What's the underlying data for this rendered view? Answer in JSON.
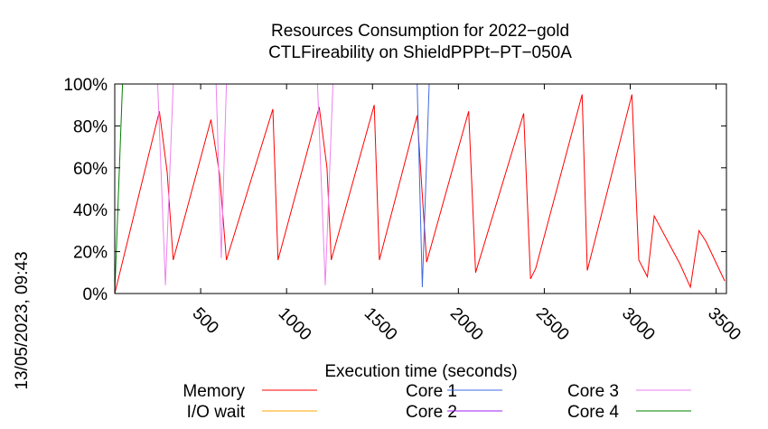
{
  "chart_data": {
    "type": "line",
    "title": "Resources Consumption for 2022−gold",
    "subtitle": "CTLFireability on ShieldPPPt−PT−050A",
    "xlabel": "Execution time (seconds)",
    "ylabel": "",
    "side_label": "13/05/2023, 09:43",
    "xlim": [
      0,
      3560
    ],
    "ylim": [
      0,
      100
    ],
    "x_ticks": [
      500,
      1000,
      1500,
      2000,
      2500,
      3000,
      3500
    ],
    "y_ticks": [
      {
        "value": 0,
        "label": "0%"
      },
      {
        "value": 20,
        "label": "20%"
      },
      {
        "value": 40,
        "label": "40%"
      },
      {
        "value": 60,
        "label": "60%"
      },
      {
        "value": 80,
        "label": "80%"
      },
      {
        "value": 100,
        "label": "100%"
      }
    ],
    "grid": false,
    "legend_position": "bottom",
    "series": [
      {
        "name": "Memory",
        "color": "#ff0000",
        "points": [
          [
            0,
            0
          ],
          [
            260,
            87
          ],
          [
            305,
            58
          ],
          [
            340,
            16
          ],
          [
            560,
            83
          ],
          [
            610,
            57
          ],
          [
            650,
            16
          ],
          [
            920,
            88
          ],
          [
            950,
            16
          ],
          [
            1190,
            89
          ],
          [
            1235,
            60
          ],
          [
            1260,
            16
          ],
          [
            1510,
            90
          ],
          [
            1540,
            16
          ],
          [
            1760,
            85
          ],
          [
            1815,
            15
          ],
          [
            2060,
            87
          ],
          [
            2100,
            10
          ],
          [
            2380,
            86
          ],
          [
            2420,
            7
          ],
          [
            2450,
            12
          ],
          [
            2720,
            95
          ],
          [
            2750,
            11
          ],
          [
            3010,
            95
          ],
          [
            3050,
            16
          ],
          [
            3100,
            8
          ],
          [
            3140,
            37
          ],
          [
            3290,
            14
          ],
          [
            3350,
            3
          ],
          [
            3400,
            30
          ],
          [
            3440,
            25
          ],
          [
            3550,
            6
          ]
        ]
      },
      {
        "name": "I/O wait",
        "color": "#ffa500",
        "points": []
      },
      {
        "name": "Core 1",
        "color": "#4169e1",
        "points": [
          [
            1760,
            100
          ],
          [
            1790,
            3
          ],
          [
            1830,
            100
          ]
        ]
      },
      {
        "name": "Core 2",
        "color": "#a020f0",
        "points": []
      },
      {
        "name": "Core 3",
        "color": "#ee82ee",
        "points": [
          [
            250,
            100
          ],
          [
            295,
            4
          ],
          [
            340,
            100
          ],
          [
            590,
            100
          ],
          [
            620,
            17
          ],
          [
            650,
            100
          ],
          [
            1180,
            100
          ],
          [
            1225,
            4
          ],
          [
            1270,
            100
          ]
        ]
      },
      {
        "name": "Core 4",
        "color": "#008000",
        "points": [
          [
            0,
            0
          ],
          [
            45,
            100
          ],
          [
            3560,
            100
          ]
        ]
      }
    ]
  }
}
